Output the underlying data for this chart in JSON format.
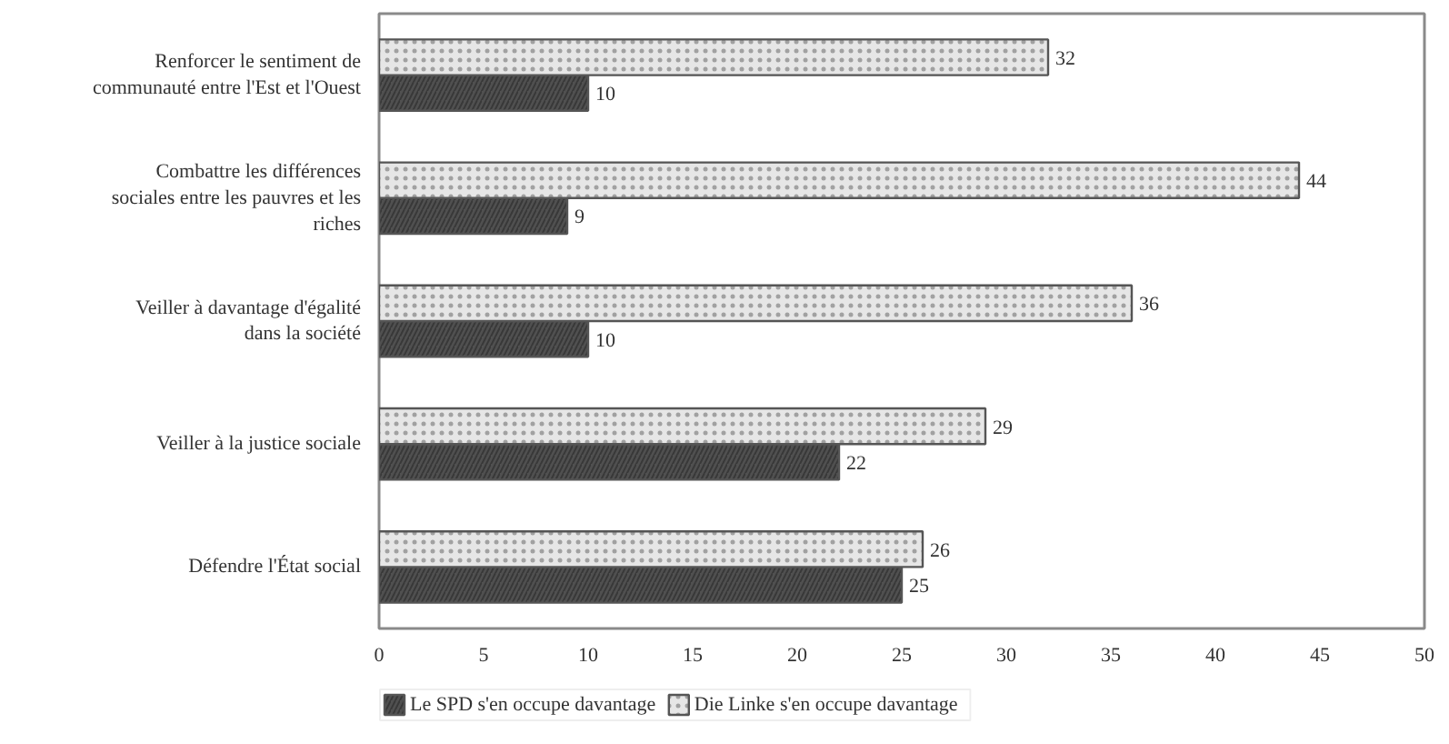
{
  "chart_data": {
    "type": "bar",
    "orientation": "horizontal",
    "categories": [
      "Renforcer le sentiment de communauté entre l'Est et l'Ouest",
      "Combattre les différences sociales entre les pauvres et les riches",
      "Veiller à davantage d'égalité dans la société",
      "Veiller à la justice sociale",
      "Défendre l'État social"
    ],
    "series": [
      {
        "name": "Le SPD s'en occupe davantage",
        "color": "#505050",
        "values": [
          10,
          9,
          10,
          22,
          25
        ]
      },
      {
        "name": "Die Linke s'en occupe davantage",
        "color": "#e6e6e6",
        "values": [
          32,
          44,
          36,
          29,
          26
        ]
      }
    ],
    "xlim": [
      0,
      50
    ],
    "xticks": [
      0,
      5,
      10,
      15,
      20,
      25,
      30,
      35,
      40,
      45,
      50
    ],
    "legend": "bottom",
    "data_labels": true
  }
}
